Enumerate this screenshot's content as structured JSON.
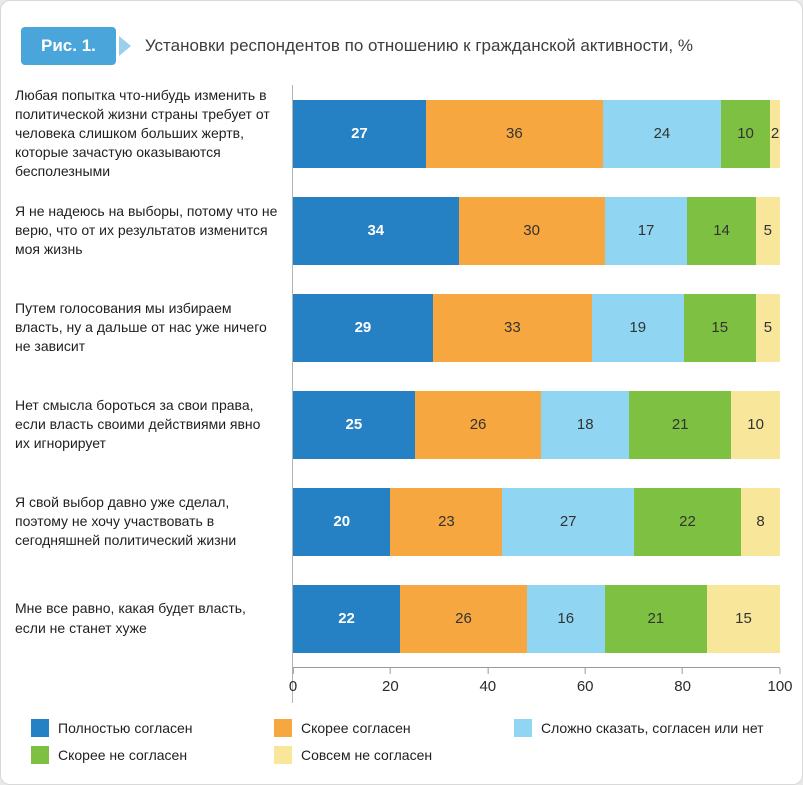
{
  "header": {
    "tag": "Рис. 1.",
    "title": "Установки респондентов по отношению к гражданской активности, %"
  },
  "chart_data": {
    "type": "bar",
    "orientation": "horizontal",
    "stacked": true,
    "xlim": [
      0,
      100
    ],
    "x_ticks": [
      0,
      20,
      40,
      60,
      80,
      100
    ],
    "grid": false,
    "legend_position": "bottom",
    "categories": [
      "Любая попытка что-нибудь изменить в политической жизни страны требует от человека слишком больших жертв, которые зачастую оказываются бесполезными",
      "Я не надеюсь на выборы, потому что не верю, что от их результатов изменится моя жизнь",
      "Путем голосования мы избираем власть, ну а дальше от нас уже ничего не зависит",
      "Нет смысла бороться за свои права, если власть своими действиями явно их игнорирует",
      "Я свой выбор давно уже сделал, поэтому не хочу участвовать в сегодняшней политический жизни",
      "Мне все равно, какая будет власть, если не станет хуже"
    ],
    "series": [
      {
        "name": "Полностью согласен",
        "color": "#2581c4",
        "text_color": "#ffffff",
        "values": [
          27,
          34,
          29,
          25,
          20,
          22
        ]
      },
      {
        "name": "Скорее согласен",
        "color": "#f6a73f",
        "text_color": "#333333",
        "values": [
          36,
          30,
          33,
          26,
          23,
          26
        ]
      },
      {
        "name": "Сложно сказать, согласен или нет",
        "color": "#90d5f2",
        "text_color": "#333333",
        "values": [
          24,
          17,
          19,
          18,
          27,
          16
        ]
      },
      {
        "name": "Скорее не согласен",
        "color": "#7ec142",
        "text_color": "#333333",
        "values": [
          10,
          14,
          15,
          21,
          22,
          21
        ]
      },
      {
        "name": "Совсем не согласен",
        "color": "#f8e79b",
        "text_color": "#333333",
        "values": [
          2,
          5,
          5,
          10,
          8,
          15
        ]
      }
    ]
  }
}
